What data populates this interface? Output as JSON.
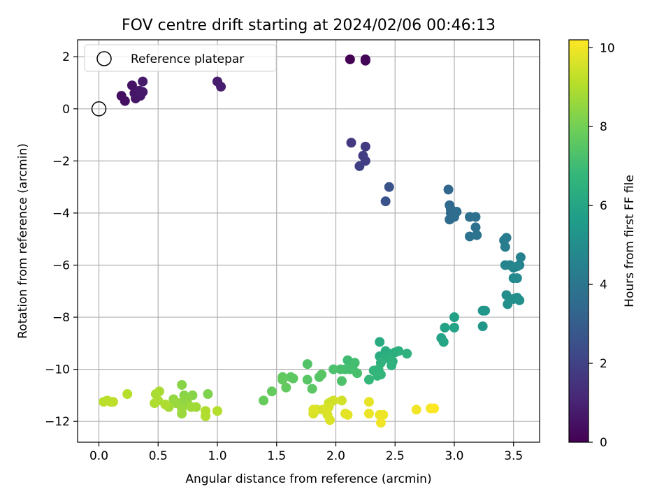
{
  "chart_data": {
    "type": "scatter",
    "title": "FOV centre drift starting at 2024/02/06 00:46:13",
    "xlabel": "Angular distance from reference (arcmin)",
    "ylabel": "Rotation from reference (arcmin)",
    "xlim": [
      -0.18,
      3.72
    ],
    "ylim": [
      -12.8,
      2.65
    ],
    "xticks": [
      0.0,
      0.5,
      1.0,
      1.5,
      2.0,
      2.5,
      3.0,
      3.5
    ],
    "xtick_labels": [
      "0.0",
      "0.5",
      "1.0",
      "1.5",
      "2.0",
      "2.5",
      "3.0",
      "3.5"
    ],
    "yticks": [
      2,
      0,
      -2,
      -4,
      -6,
      -8,
      -10,
      -12
    ],
    "ytick_labels": [
      "2",
      "0",
      "−2",
      "−4",
      "−6",
      "−8",
      "−10",
      "−12"
    ],
    "grid": true,
    "legend": {
      "placement": "top-left",
      "entries": [
        "Reference platepar"
      ]
    },
    "reference_point": {
      "x": 0.0,
      "y": 0.0
    },
    "colorbar": {
      "label": "Hours from first FF file",
      "range": [
        0,
        10.2
      ],
      "ticks": [
        0,
        2,
        4,
        6,
        8,
        10
      ],
      "tick_labels": [
        "0",
        "2",
        "4",
        "6",
        "8",
        "10"
      ],
      "colormap": "viridis"
    },
    "colormap_stops": [
      "#440154",
      "#482878",
      "#3e4a89",
      "#31688e",
      "#26828e",
      "#1f9e89",
      "#35b779",
      "#6ece58",
      "#b5de2b",
      "#fde725"
    ],
    "series": [
      {
        "points": [
          [
            2.12,
            1.9,
            0.0
          ],
          [
            2.25,
            1.9,
            0.05
          ],
          [
            2.25,
            1.85,
            0.1
          ],
          [
            0.19,
            0.5,
            0.4
          ],
          [
            0.22,
            0.3,
            0.45
          ],
          [
            0.28,
            0.9,
            0.5
          ],
          [
            0.3,
            0.6,
            0.55
          ],
          [
            0.31,
            0.4,
            0.6
          ],
          [
            0.35,
            0.5,
            0.65
          ],
          [
            0.37,
            0.65,
            0.7
          ],
          [
            0.37,
            1.05,
            0.75
          ],
          [
            0.34,
            0.7,
            0.7
          ],
          [
            1.0,
            1.05,
            0.8
          ],
          [
            1.03,
            0.85,
            0.85
          ],
          [
            2.13,
            -1.3,
            1.7
          ],
          [
            2.25,
            -1.45,
            1.75
          ],
          [
            2.23,
            -1.8,
            1.8
          ],
          [
            2.25,
            -2.0,
            1.85
          ],
          [
            2.2,
            -2.2,
            1.9
          ],
          [
            2.45,
            -3.0,
            2.6
          ],
          [
            2.42,
            -3.55,
            2.65
          ],
          [
            2.95,
            -3.1,
            3.4
          ],
          [
            2.96,
            -3.7,
            3.45
          ],
          [
            2.97,
            -3.85,
            3.5
          ],
          [
            2.97,
            -4.0,
            3.55
          ],
          [
            2.96,
            -4.25,
            3.6
          ],
          [
            3.0,
            -4.15,
            3.6
          ],
          [
            3.02,
            -3.95,
            3.65
          ],
          [
            3.13,
            -4.15,
            3.7
          ],
          [
            3.18,
            -4.15,
            3.75
          ],
          [
            3.18,
            -4.55,
            3.8
          ],
          [
            3.13,
            -4.9,
            3.85
          ],
          [
            3.19,
            -4.85,
            3.9
          ],
          [
            3.42,
            -5.05,
            4.2
          ],
          [
            3.44,
            -4.95,
            4.25
          ],
          [
            3.43,
            -5.3,
            4.3
          ],
          [
            3.56,
            -5.7,
            4.5
          ],
          [
            3.55,
            -6.0,
            4.55
          ],
          [
            3.43,
            -6.0,
            4.6
          ],
          [
            3.47,
            -6.0,
            4.6
          ],
          [
            3.5,
            -6.1,
            4.65
          ],
          [
            3.53,
            -6.05,
            4.7
          ],
          [
            3.5,
            -6.5,
            4.8
          ],
          [
            3.53,
            -6.5,
            4.85
          ],
          [
            3.44,
            -7.15,
            5.0
          ],
          [
            3.5,
            -7.3,
            5.05
          ],
          [
            3.53,
            -7.25,
            5.05
          ],
          [
            3.55,
            -7.35,
            5.1
          ],
          [
            3.45,
            -7.5,
            5.1
          ],
          [
            3.24,
            -7.75,
            5.3
          ],
          [
            3.26,
            -7.75,
            5.35
          ],
          [
            3.24,
            -8.35,
            5.4
          ],
          [
            3.0,
            -8.0,
            5.8
          ],
          [
            2.92,
            -8.4,
            5.85
          ],
          [
            3.0,
            -8.4,
            5.9
          ],
          [
            2.89,
            -8.8,
            5.95
          ],
          [
            2.91,
            -8.95,
            6.0
          ],
          [
            2.37,
            -8.95,
            6.2
          ],
          [
            2.37,
            -9.5,
            6.3
          ],
          [
            2.42,
            -9.3,
            6.3
          ],
          [
            2.45,
            -9.4,
            6.35
          ],
          [
            2.5,
            -9.35,
            6.4
          ],
          [
            2.53,
            -9.3,
            6.45
          ],
          [
            2.6,
            -9.4,
            6.5
          ],
          [
            2.4,
            -9.6,
            6.4
          ],
          [
            2.45,
            -9.6,
            6.45
          ],
          [
            2.48,
            -9.7,
            6.5
          ],
          [
            2.38,
            -9.75,
            6.55
          ],
          [
            2.47,
            -9.85,
            6.55
          ],
          [
            2.36,
            -10.0,
            6.6
          ],
          [
            2.32,
            -10.05,
            6.65
          ],
          [
            2.38,
            -10.2,
            6.7
          ],
          [
            2.35,
            -10.25,
            6.75
          ],
          [
            2.28,
            -10.4,
            6.8
          ],
          [
            2.1,
            -9.65,
            7.0
          ],
          [
            2.14,
            -9.95,
            7.05
          ],
          [
            2.16,
            -9.75,
            7.1
          ],
          [
            2.08,
            -10.0,
            7.1
          ],
          [
            2.12,
            -10.0,
            7.15
          ],
          [
            2.18,
            -10.15,
            7.2
          ],
          [
            2.04,
            -10.0,
            7.2
          ],
          [
            1.98,
            -10.0,
            7.25
          ],
          [
            2.05,
            -10.45,
            7.3
          ],
          [
            1.76,
            -9.8,
            7.4
          ],
          [
            1.86,
            -10.3,
            7.45
          ],
          [
            1.88,
            -10.2,
            7.5
          ],
          [
            1.76,
            -10.4,
            7.5
          ],
          [
            1.8,
            -10.75,
            7.55
          ],
          [
            1.62,
            -10.3,
            7.6
          ],
          [
            1.64,
            -10.35,
            7.6
          ],
          [
            1.55,
            -10.3,
            7.65
          ],
          [
            1.55,
            -10.4,
            7.7
          ],
          [
            1.58,
            -10.7,
            7.7
          ],
          [
            1.46,
            -10.85,
            7.75
          ],
          [
            1.39,
            -11.2,
            7.8
          ],
          [
            0.92,
            -10.95,
            8.2
          ],
          [
            0.79,
            -11.0,
            8.3
          ],
          [
            0.7,
            -10.6,
            8.35
          ],
          [
            0.72,
            -11.0,
            8.35
          ],
          [
            0.75,
            -11.1,
            8.4
          ],
          [
            0.72,
            -11.2,
            8.45
          ],
          [
            0.75,
            -11.35,
            8.5
          ],
          [
            0.68,
            -11.3,
            8.5
          ],
          [
            0.63,
            -11.15,
            8.55
          ],
          [
            0.65,
            -11.3,
            8.6
          ],
          [
            0.7,
            -11.5,
            8.6
          ],
          [
            0.7,
            -11.7,
            8.65
          ],
          [
            0.78,
            -11.45,
            8.7
          ],
          [
            0.82,
            -11.45,
            8.75
          ],
          [
            0.59,
            -11.45,
            8.8
          ],
          [
            0.51,
            -10.85,
            8.85
          ],
          [
            0.48,
            -10.95,
            8.9
          ],
          [
            0.5,
            -11.2,
            8.9
          ],
          [
            0.47,
            -11.3,
            8.95
          ],
          [
            0.56,
            -11.35,
            8.95
          ],
          [
            0.9,
            -11.6,
            9.0
          ],
          [
            0.9,
            -11.8,
            9.0
          ],
          [
            1.0,
            -11.6,
            9.05
          ],
          [
            0.24,
            -10.95,
            9.1
          ],
          [
            0.04,
            -11.25,
            9.15
          ],
          [
            0.07,
            -11.2,
            9.15
          ],
          [
            0.1,
            -11.25,
            9.2
          ],
          [
            0.12,
            -11.25,
            9.2
          ],
          [
            1.94,
            -11.3,
            9.4
          ],
          [
            1.96,
            -11.25,
            9.45
          ],
          [
            1.98,
            -11.2,
            9.5
          ],
          [
            2.05,
            -11.2,
            9.5
          ],
          [
            1.94,
            -11.45,
            9.55
          ],
          [
            1.84,
            -11.55,
            9.55
          ],
          [
            1.81,
            -11.7,
            9.6
          ],
          [
            1.89,
            -11.55,
            9.6
          ],
          [
            1.93,
            -11.75,
            9.65
          ],
          [
            1.95,
            -11.95,
            9.65
          ],
          [
            1.81,
            -11.55,
            9.7
          ],
          [
            2.08,
            -11.7,
            9.75
          ],
          [
            2.1,
            -11.75,
            9.8
          ],
          [
            2.28,
            -11.25,
            9.85
          ],
          [
            2.28,
            -11.7,
            9.9
          ],
          [
            2.37,
            -11.75,
            9.9
          ],
          [
            2.4,
            -11.75,
            9.95
          ],
          [
            2.38,
            -12.05,
            10.0
          ],
          [
            2.68,
            -11.55,
            10.0
          ],
          [
            2.8,
            -11.5,
            10.1
          ],
          [
            2.83,
            -11.5,
            10.2
          ]
        ]
      }
    ]
  }
}
